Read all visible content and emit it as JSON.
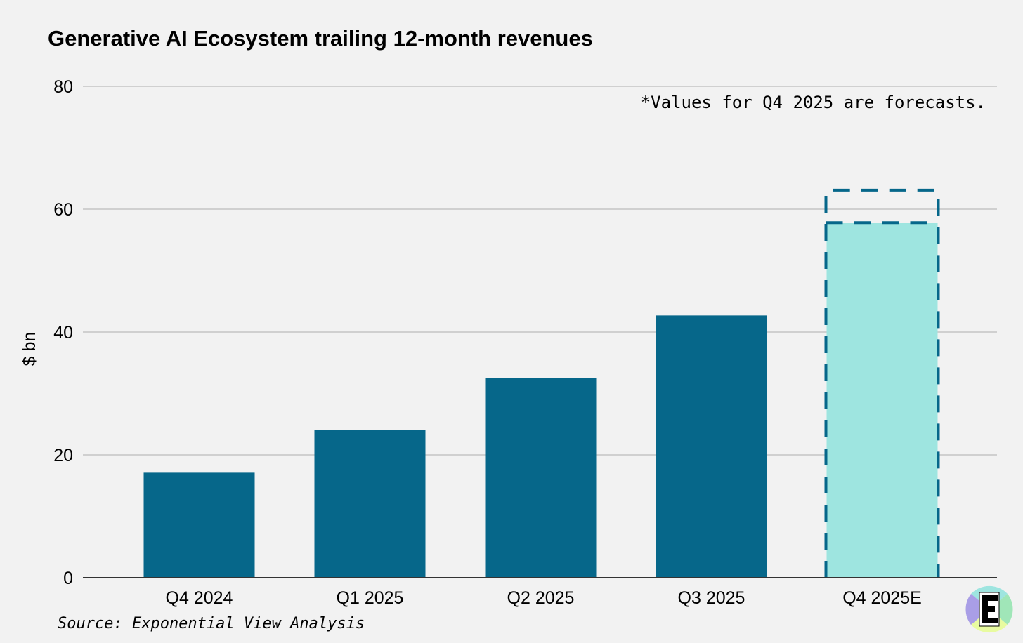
{
  "chart_data": {
    "type": "bar",
    "title": "Generative AI Ecosystem trailing 12-month revenues",
    "xlabel": "",
    "ylabel": "$ bn",
    "ylim": [
      0,
      80
    ],
    "yticks": [
      0,
      20,
      40,
      60,
      80
    ],
    "ytick_labels": [
      "0",
      "20",
      "40",
      "60",
      "80"
    ],
    "grid": true,
    "categories": [
      "Q4 2024",
      "Q1 2025",
      "Q2 2025",
      "Q3 2025",
      "Q4 2025E"
    ],
    "values": [
      17.1,
      24.0,
      32.5,
      42.7,
      57.8
    ],
    "forecast_upper": {
      "category": "Q4 2025E",
      "value": 63.1
    },
    "forecast_flags": [
      false,
      false,
      false,
      false,
      true
    ],
    "annotation": "*Values for Q4 2025 are forecasts.",
    "source": "Source: Exponential View Analysis",
    "logo_text": "E",
    "colors": {
      "actual": "#06678a",
      "forecast": "#9ee5e0",
      "forecast_outline": "#06678a",
      "grid": "#c4c4c4",
      "background": "#f2f2f2"
    }
  }
}
